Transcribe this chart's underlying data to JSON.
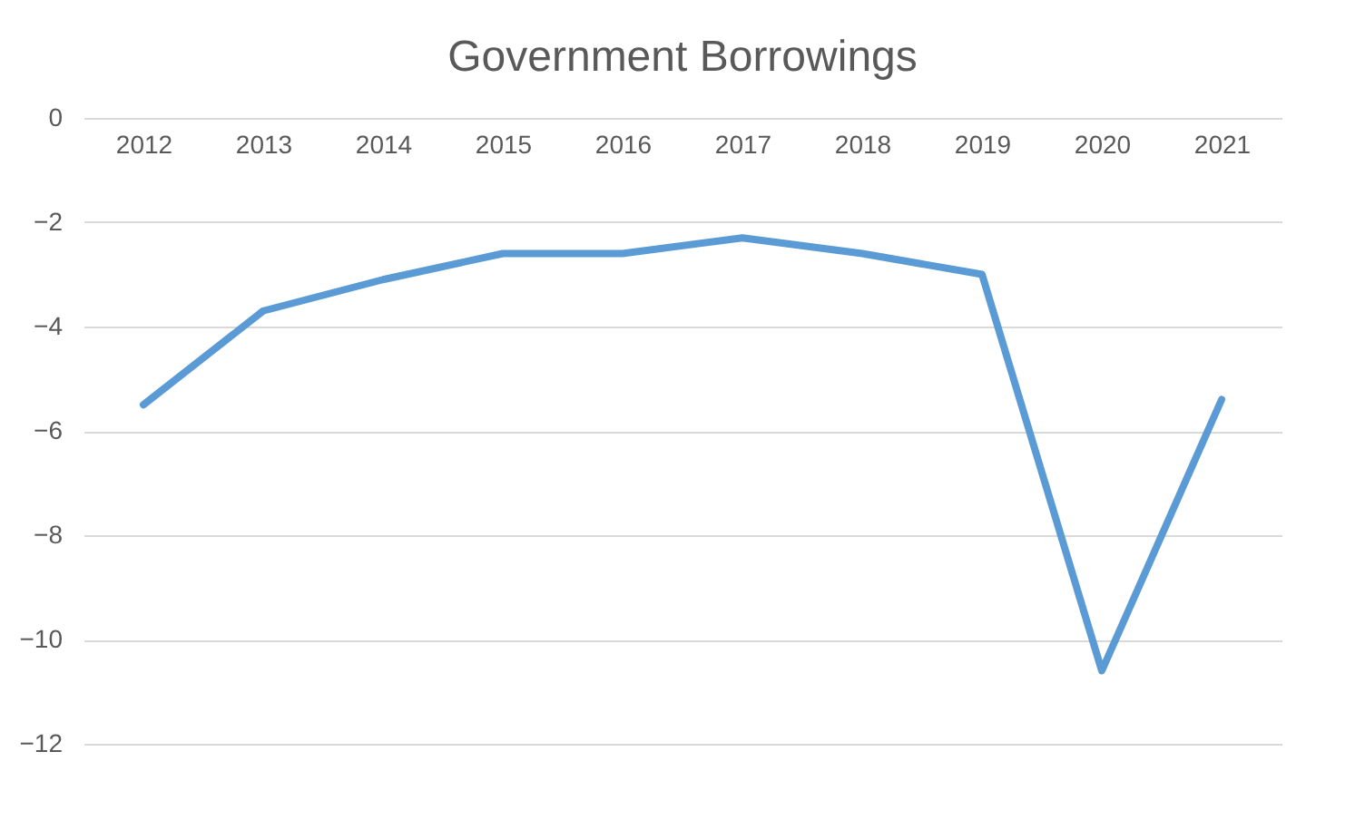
{
  "chart_data": {
    "type": "line",
    "title": "Government Borrowings",
    "categories": [
      "2012",
      "2013",
      "2014",
      "2015",
      "2016",
      "2017",
      "2018",
      "2019",
      "2020",
      "2021"
    ],
    "series": [
      {
        "color": "#5b9bd5",
        "values": [
          -5.5,
          -3.7,
          -3.1,
          -2.6,
          -2.6,
          -2.3,
          -2.6,
          -3.0,
          -10.6,
          -5.4
        ]
      }
    ],
    "ylim": [
      -12,
      0
    ],
    "yticks": [
      -12,
      -10,
      -8,
      -6,
      -4,
      -2,
      0
    ],
    "grid": "y",
    "marker": "none",
    "line_style": "solid"
  }
}
